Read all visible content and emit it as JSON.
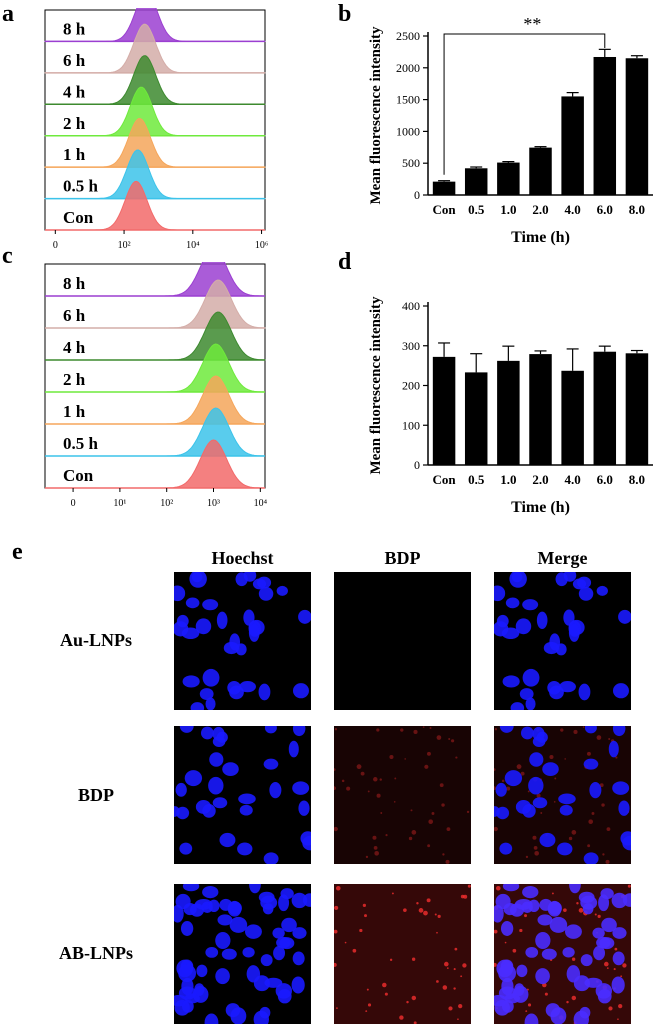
{
  "panels": {
    "a": "a",
    "b": "b",
    "c": "c",
    "d": "d",
    "e": "e"
  },
  "chart_data": [
    {
      "panel": "a",
      "type": "area",
      "title": "",
      "series": [
        {
          "name": "8 h",
          "color": "#9b3fd1",
          "peak_log": 2.65
        },
        {
          "name": "6 h",
          "color": "#d4ada8",
          "peak_log": 2.6
        },
        {
          "name": "4 h",
          "color": "#3d8a2f",
          "peak_log": 2.6
        },
        {
          "name": "2 h",
          "color": "#6fea3c",
          "peak_log": 2.5
        },
        {
          "name": "1 h",
          "color": "#f5a65b",
          "peak_log": 2.45
        },
        {
          "name": "0.5 h",
          "color": "#3cc3ea",
          "peak_log": 2.4
        },
        {
          "name": "Con",
          "color": "#f26a6a",
          "peak_log": 2.35
        }
      ],
      "x_ticks": [
        "0",
        "10²",
        "10⁴",
        "10⁶"
      ],
      "x_tick_exp": [
        0,
        2,
        4,
        6
      ]
    },
    {
      "panel": "b",
      "type": "bar",
      "categories": [
        "Con",
        "0.5",
        "1.0",
        "2.0",
        "4.0",
        "6.0",
        "8.0"
      ],
      "values": [
        210,
        420,
        510,
        745,
        1550,
        2170,
        2150
      ],
      "errors": [
        15,
        20,
        15,
        15,
        60,
        120,
        40
      ],
      "xlabel": "Time (h)",
      "ylabel": "Mean fluorescence intensity",
      "ylim": [
        0,
        2500
      ],
      "yticks": [
        0,
        500,
        1000,
        1500,
        2000,
        2500
      ],
      "annotation": "**"
    },
    {
      "panel": "c",
      "type": "area",
      "title": "",
      "series": [
        {
          "name": "8 h",
          "color": "#9b3fd1",
          "peak_log": 3.0
        },
        {
          "name": "6 h",
          "color": "#d4ada8",
          "peak_log": 3.1
        },
        {
          "name": "4 h",
          "color": "#3d8a2f",
          "peak_log": 3.1
        },
        {
          "name": "2 h",
          "color": "#6fea3c",
          "peak_log": 3.05
        },
        {
          "name": "1 h",
          "color": "#f5a65b",
          "peak_log": 3.05
        },
        {
          "name": "0.5 h",
          "color": "#3cc3ea",
          "peak_log": 3.05
        },
        {
          "name": "Con",
          "color": "#f26a6a",
          "peak_log": 3.0
        }
      ],
      "x_ticks": [
        "0",
        "10¹",
        "10²",
        "10³",
        "10⁴"
      ],
      "x_tick_exp": [
        0,
        1,
        2,
        3,
        4
      ]
    },
    {
      "panel": "d",
      "type": "bar",
      "categories": [
        "Con",
        "0.5",
        "1.0",
        "2.0",
        "4.0",
        "6.0",
        "8.0"
      ],
      "values": [
        272,
        233,
        262,
        279,
        237,
        285,
        281
      ],
      "errors": [
        35,
        47,
        37,
        8,
        55,
        14,
        7
      ],
      "xlabel": "Time (h)",
      "ylabel": "Mean fluorescence intensity",
      "ylim": [
        0,
        400
      ],
      "yticks": [
        0,
        100,
        200,
        300,
        400
      ]
    }
  ],
  "microscopy": {
    "columns": [
      "Hoechst",
      "BDP",
      "Merge"
    ],
    "rows": [
      "Au-LNPs",
      "BDP",
      "AB-LNPs"
    ],
    "nuclei_color": "#1a1aff",
    "bdp_color": "#c81e1e"
  }
}
